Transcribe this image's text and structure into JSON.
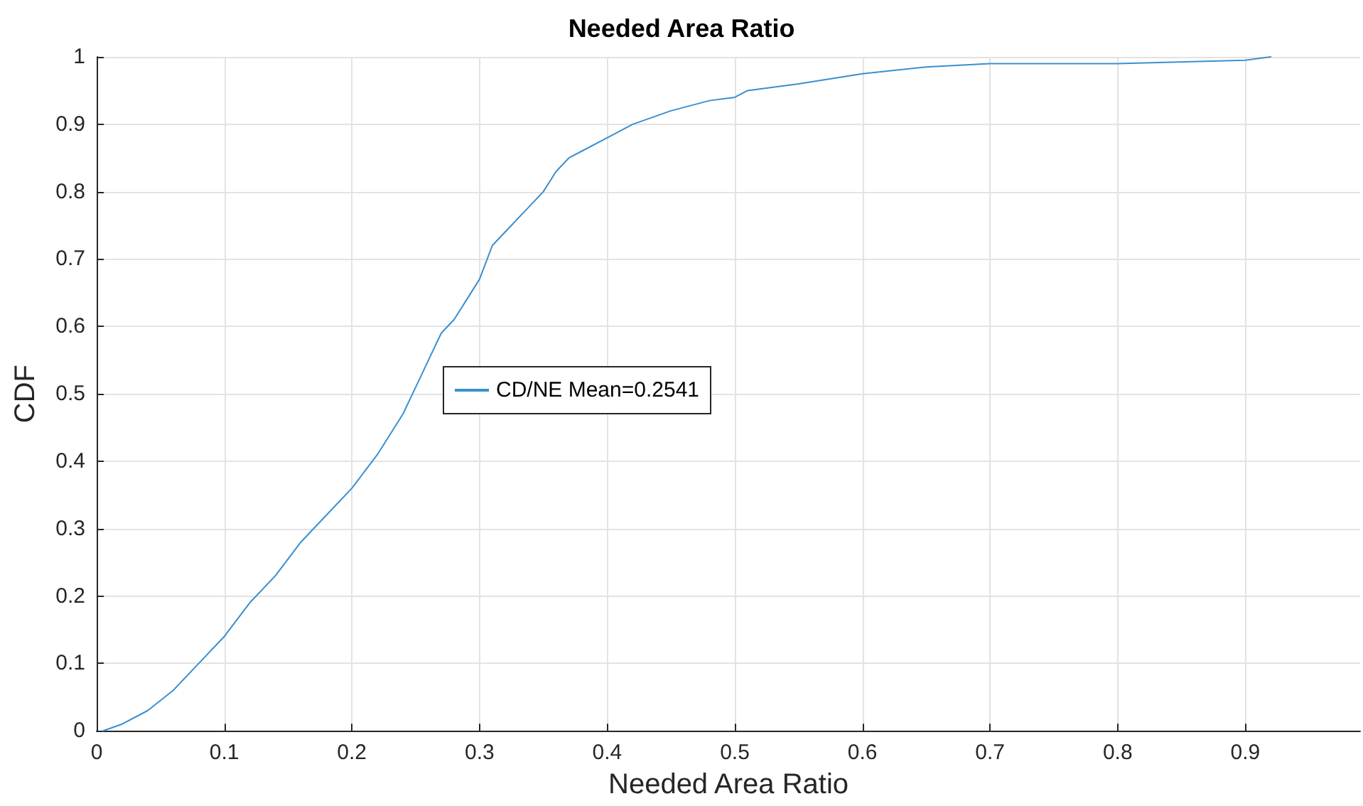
{
  "chart_data": {
    "type": "line",
    "title": "Needed Area Ratio",
    "xlabel": "Needed Area Ratio",
    "ylabel": "CDF",
    "series": [
      {
        "name": "CD/NE Mean=0.2541",
        "color": "#3a8fd0",
        "x": [
          0.005,
          0.02,
          0.04,
          0.06,
          0.08,
          0.1,
          0.12,
          0.14,
          0.16,
          0.18,
          0.2,
          0.22,
          0.24,
          0.25,
          0.26,
          0.27,
          0.28,
          0.29,
          0.3,
          0.31,
          0.32,
          0.34,
          0.35,
          0.36,
          0.37,
          0.38,
          0.4,
          0.42,
          0.45,
          0.48,
          0.5,
          0.51,
          0.55,
          0.6,
          0.65,
          0.7,
          0.8,
          0.9,
          0.92
        ],
        "values": [
          0,
          0.01,
          0.03,
          0.06,
          0.1,
          0.14,
          0.19,
          0.23,
          0.28,
          0.32,
          0.36,
          0.41,
          0.47,
          0.51,
          0.55,
          0.59,
          0.61,
          0.64,
          0.67,
          0.72,
          0.74,
          0.78,
          0.8,
          0.83,
          0.85,
          0.86,
          0.88,
          0.9,
          0.92,
          0.935,
          0.94,
          0.95,
          0.96,
          0.975,
          0.985,
          0.99,
          0.99,
          0.995,
          1
        ]
      }
    ],
    "xlim": [
      0,
      0.99
    ],
    "xticks": [
      0,
      0.1,
      0.2,
      0.3,
      0.4,
      0.5,
      0.6,
      0.7,
      0.8,
      0.9
    ],
    "ylim": [
      0,
      1
    ],
    "yticks": [
      0,
      0.1,
      0.2,
      0.3,
      0.4,
      0.5,
      0.6,
      0.7,
      0.8,
      0.9,
      1
    ],
    "grid": true,
    "legend": "left",
    "marker": "none",
    "line_style": "solid"
  }
}
